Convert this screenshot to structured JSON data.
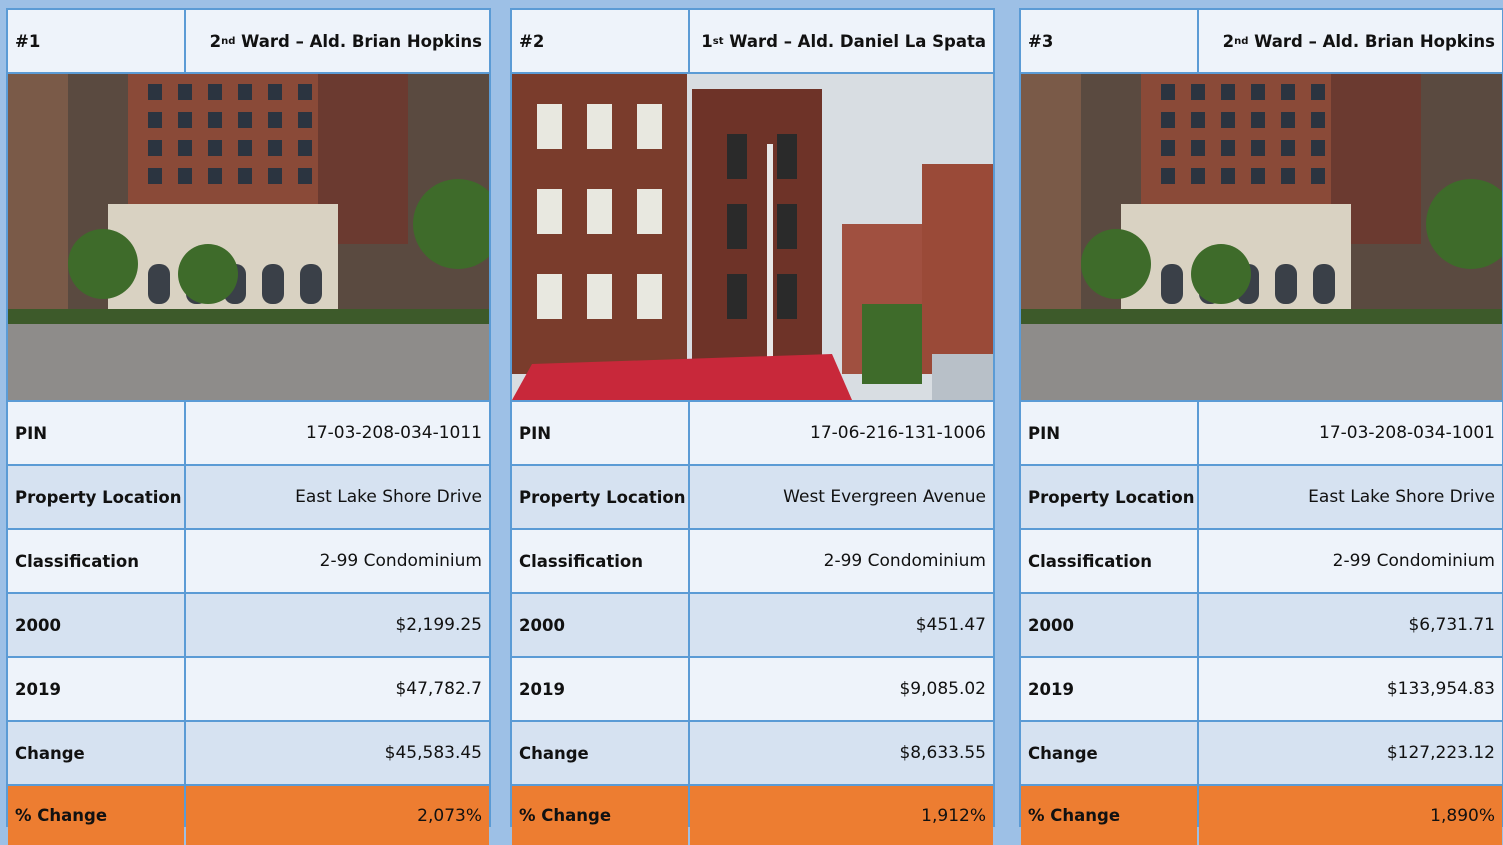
{
  "cards": [
    {
      "rank": "#1",
      "ward": {
        "ordinal": "2",
        "suffix": "nd",
        "name": "Ward – Ald. Brian Hopkins"
      },
      "rows": [
        {
          "label": "PIN",
          "value": "17-03-208-034-1011"
        },
        {
          "label": "Property Location",
          "value": "East Lake Shore Drive"
        },
        {
          "label": "Classification",
          "value": "2-99 Condominium"
        },
        {
          "label": "2000",
          "value": "$2,199.25"
        },
        {
          "label": "2019",
          "value": "$47,782.7"
        },
        {
          "label": "Change",
          "value": "$45,583.45"
        },
        {
          "label": "% Change",
          "value": "2,073%"
        }
      ]
    },
    {
      "rank": "#2",
      "ward": {
        "ordinal": "1",
        "suffix": "st",
        "name": "Ward – Ald. Daniel La Spata"
      },
      "rows": [
        {
          "label": "PIN",
          "value": "17-06-216-131-1006"
        },
        {
          "label": "Property Location",
          "value": "West Evergreen Avenue"
        },
        {
          "label": "Classification",
          "value": "2-99 Condominium"
        },
        {
          "label": "2000",
          "value": "$451.47"
        },
        {
          "label": "2019",
          "value": "$9,085.02"
        },
        {
          "label": "Change",
          "value": "$8,633.55"
        },
        {
          "label": "% Change",
          "value": "1,912%"
        }
      ]
    },
    {
      "rank": "#3",
      "ward": {
        "ordinal": "2",
        "suffix": "nd",
        "name": "Ward – Ald. Brian Hopkins"
      },
      "rows": [
        {
          "label": "PIN",
          "value": "17-03-208-034-1001"
        },
        {
          "label": "Property Location",
          "value": "East Lake Shore Drive"
        },
        {
          "label": "Classification",
          "value": "2-99 Condominium"
        },
        {
          "label": "2000",
          "value": "$6,731.71"
        },
        {
          "label": "2019",
          "value": "$133,954.83"
        },
        {
          "label": "Change",
          "value": "$127,223.12"
        },
        {
          "label": "% Change",
          "value": "1,890%"
        }
      ]
    }
  ]
}
